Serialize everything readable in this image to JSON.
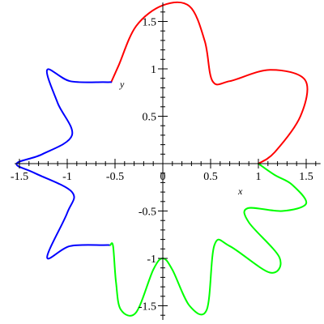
{
  "chart_data": {
    "type": "line",
    "title": "",
    "xlabel": "x",
    "ylabel": "y",
    "xlim": [
      -1.55,
      1.65
    ],
    "ylim": [
      -1.65,
      1.7
    ],
    "grid": false,
    "xticks": [
      {
        "value": -1.5,
        "label": "-1.5"
      },
      {
        "value": -1,
        "label": "-1"
      },
      {
        "value": -0.5,
        "label": "-0.5"
      },
      {
        "value": 0,
        "label": "0"
      },
      {
        "value": 0.5,
        "label": "0.5"
      },
      {
        "value": 1,
        "label": "1"
      },
      {
        "value": 1.5,
        "label": "1.5"
      }
    ],
    "yticks": [
      {
        "value": 1.5,
        "label": "1.5"
      },
      {
        "value": 1,
        "label": "1"
      },
      {
        "value": 0.5,
        "label": "0.5"
      },
      {
        "value": -0.5,
        "label": "-0.5"
      },
      {
        "value": -1,
        "label": "-1"
      },
      {
        "value": -1.5,
        "label": "-1.5"
      }
    ],
    "series": [
      {
        "color": "#ff0000",
        "x": [
          1.0,
          1.17,
          1.44,
          1.49,
          1.12,
          0.7,
          0.52,
          0.44,
          0.28,
          0.0,
          -0.28,
          -0.46,
          -0.54
        ],
        "y": [
          0.0,
          0.12,
          0.5,
          0.88,
          0.99,
          0.87,
          0.87,
          1.29,
          1.66,
          1.67,
          1.45,
          1.04,
          0.86
        ]
      },
      {
        "color": "#0000ff",
        "x": [
          -0.54,
          -0.62,
          -0.97,
          -1.21,
          -1.1,
          -0.95,
          -1.26,
          -1.53,
          -1.34,
          -0.95,
          -1.0,
          -1.21,
          -0.97,
          -0.62,
          -0.55
        ],
        "y": [
          0.86,
          0.86,
          0.87,
          0.99,
          0.64,
          0.3,
          0.1,
          0.0,
          -0.1,
          -0.3,
          -0.52,
          -0.99,
          -0.87,
          -0.86,
          -0.86
        ]
      },
      {
        "color": "#00ff00",
        "x": [
          -0.55,
          -0.52,
          -0.49,
          -0.44,
          -0.28,
          -0.1,
          0.0,
          0.1,
          0.28,
          0.46,
          0.54,
          0.7,
          1.12,
          1.22,
          0.9,
          0.89,
          1.25,
          1.5,
          1.35,
          1.17,
          1.0
        ],
        "y": [
          -0.86,
          -0.87,
          -1.25,
          -1.54,
          -1.57,
          -1.12,
          -1.0,
          -1.12,
          -1.5,
          -1.54,
          -0.86,
          -0.87,
          -1.15,
          -0.99,
          -0.62,
          -0.47,
          -0.5,
          -0.42,
          -0.22,
          -0.12,
          0.0
        ]
      }
    ]
  }
}
